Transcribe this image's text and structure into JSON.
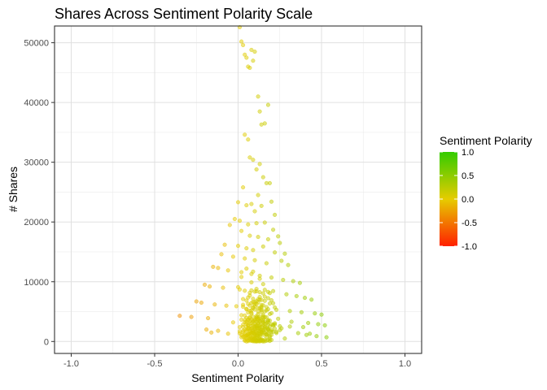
{
  "chart_data": {
    "type": "scatter",
    "title": "Shares Across Sentiment Polarity Scale",
    "xlabel": "Sentiment Polarity",
    "ylabel": "# Shares",
    "xlim": [
      -1.1,
      1.1
    ],
    "ylim": [
      -2000,
      52800
    ],
    "x_ticks": [
      -1.0,
      -0.5,
      0.0,
      0.5,
      1.0
    ],
    "x_tick_labels": [
      "-1.0",
      "-0.5",
      "0.0",
      "0.5",
      "1.0"
    ],
    "y_ticks": [
      0,
      10000,
      20000,
      30000,
      40000,
      50000
    ],
    "y_tick_labels": [
      "0",
      "10000",
      "20000",
      "30000",
      "40000",
      "50000"
    ],
    "grid": true,
    "point_opacity": 0.5,
    "legend": {
      "title": "Sentiment Polarity",
      "placement": "right",
      "ticks": [
        1.0,
        0.5,
        0.0,
        -0.5,
        -1.0
      ],
      "labels": [
        "1.0",
        "0.5",
        "0.0",
        "-0.5",
        "-1.0"
      ],
      "colors": {
        "low": "#ff2000",
        "mid": "#e6cc00",
        "high": "#33cc00"
      }
    },
    "x": [
      0.01,
      0.02,
      0.03,
      0.04,
      0.05,
      0.06,
      0.07,
      0.08,
      0.09,
      0.1,
      0.12,
      0.13,
      0.14,
      0.16,
      0.18,
      0.04,
      0.06,
      0.07,
      0.09,
      0.11,
      0.13,
      0.15,
      0.17,
      0.03,
      0.08,
      0.12,
      0.19,
      0.0,
      0.05,
      0.1,
      0.14,
      0.2,
      0.22,
      -0.02,
      0.01,
      0.06,
      0.11,
      0.16,
      0.21,
      0.24,
      -0.05,
      0.02,
      0.07,
      0.12,
      0.18,
      0.25,
      -0.08,
      0.0,
      0.05,
      0.09,
      0.15,
      0.22,
      0.28,
      -0.1,
      -0.03,
      0.04,
      0.1,
      0.17,
      0.26,
      0.3,
      -0.15,
      -0.12,
      -0.06,
      0.02,
      0.08,
      0.13,
      0.2,
      0.27,
      0.33,
      0.37,
      -0.2,
      -0.17,
      -0.09,
      0.01,
      0.11,
      0.19,
      0.29,
      0.35,
      0.4,
      0.44,
      -0.25,
      -0.22,
      -0.14,
      -0.07,
      0.03,
      0.14,
      0.23,
      0.31,
      0.38,
      0.46,
      0.5,
      -0.35,
      -0.28,
      -0.18,
      0.06,
      0.18,
      0.32,
      0.42,
      0.48,
      0.52,
      0.05,
      0.09,
      0.02,
      0.13,
      0.08,
      0.15,
      0.0,
      0.11,
      0.04,
      0.18,
      0.07,
      0.16,
      0.03,
      0.2,
      0.1,
      0.06,
      0.14,
      -0.01,
      0.22,
      0.09,
      0.05,
      0.17,
      0.12,
      0.08,
      0.19,
      0.02,
      0.15,
      0.11,
      0.24,
      0.04,
      0.13,
      -0.03,
      0.07,
      0.21,
      0.1,
      0.16,
      0.01,
      0.12,
      0.26,
      0.06,
      0.18,
      0.14,
      0.03,
      0.09,
      0.23,
      0.08,
      0.15,
      -0.06,
      0.11,
      0.2,
      0.05,
      0.13,
      0.17,
      0.02,
      0.1,
      0.28,
      0.07,
      0.19,
      0.12,
      0.04,
      0.14,
      0.09,
      0.16,
      0.22,
      0.06,
      0.11,
      0.25,
      0.03,
      0.13,
      0.08,
      0.18,
      0.1,
      0.05,
      0.15,
      0.12,
      0.2,
      0.07,
      0.09,
      0.14,
      0.04,
      0.17,
      0.11,
      0.06,
      0.13,
      0.19,
      0.08,
      0.1,
      0.15,
      0.05,
      0.12,
      0.22,
      0.09,
      0.16,
      0.07,
      0.13,
      0.11,
      0.02,
      0.18,
      0.1,
      0.14,
      0.06,
      0.2,
      0.08,
      0.12,
      0.15,
      0.04,
      0.11,
      0.17,
      0.09,
      0.13,
      0.05,
      0.1,
      0.14,
      0.07,
      0.16,
      0.12,
      0.08,
      0.19,
      0.11,
      0.03,
      0.15,
      0.1,
      0.13,
      0.06,
      0.18,
      0.09,
      0.12,
      0.14,
      0.05,
      0.11,
      0.16,
      0.08,
      0.21,
      0.1,
      0.13,
      0.07,
      0.15,
      -0.12,
      -0.16,
      0.36,
      0.41,
      0.47,
      0.53,
      0.43,
      0.39,
      -0.19,
      0.01,
      0.25,
      0.31,
      0.14,
      0.08,
      0.17,
      0.05,
      0.12,
      0.1,
      0.07,
      0.03,
      0.09,
      0.04,
      0.06,
      0.12,
      0.08,
      0.11,
      0.05,
      0.09,
      0.14,
      0.07,
      0.1,
      0.13,
      0.06,
      0.15,
      0.02,
      0.19,
      0.04,
      0.16,
      0.11,
      0.08,
      0.18,
      0.12,
      0.06,
      0.1,
      0.21,
      0.14,
      0.03,
      0.17,
      0.09,
      0.13,
      0.23,
      0.01,
      0.15,
      0.07,
      0.11,
      0.19,
      0.05,
      0.13,
      0.1,
      0.16,
      0.08,
      0.12,
      0.18,
      0.04,
      0.14,
      0.2,
      0.09,
      0.11,
      0.06,
      0.17,
      0.13,
      0.1,
      0.22,
      0.07,
      0.15,
      0.12,
      0.08,
      0.19,
      0.05,
      0.14,
      0.1,
      0.16,
      0.03,
      0.18,
      0.09,
      0.13,
      0.06,
      0.21,
      0.11,
      0.15,
      0.08,
      0.17,
      0.12,
      0.05,
      0.1,
      0.14,
      0.2,
      0.07,
      0.13,
      0.09,
      0.16,
      0.11,
      0.04,
      0.18,
      0.12,
      0.08,
      0.15,
      0.1,
      0.06,
      0.14,
      0.19,
      0.09,
      0.13,
      0.07,
      0.17,
      0.11,
      0.15,
      0.05,
      0.12,
      0.1,
      0.16,
      0.08,
      0.13,
      0.2,
      0.06,
      0.14,
      0.11,
      0.18,
      0.09,
      0.12,
      0.07,
      0.15,
      0.1,
      0.04,
      0.17,
      0.13,
      0.08,
      0.11,
      0.19,
      0.14,
      0.06,
      0.12,
      0.09,
      0.16,
      0.1,
      0.13,
      0.05,
      0.15,
      0.11,
      0.08,
      0.18,
      0.12,
      0.14,
      0.07,
      0.1,
      0.21,
      0.09,
      0.16,
      0.13
    ],
    "y": [
      52600,
      50200,
      49600,
      48000,
      47500,
      46000,
      45800,
      48800,
      47000,
      48500,
      41000,
      38500,
      36300,
      36500,
      39600,
      34600,
      33800,
      30800,
      30400,
      28800,
      29700,
      27500,
      26500,
      25800,
      23000,
      24500,
      26500,
      23300,
      22800,
      21800,
      22700,
      23400,
      21200,
      20500,
      20200,
      19600,
      19800,
      19900,
      18700,
      17600,
      19500,
      18500,
      17700,
      17500,
      17100,
      16500,
      16200,
      16000,
      15600,
      15300,
      15900,
      14900,
      14700,
      14600,
      14200,
      13900,
      13600,
      13100,
      13500,
      12800,
      12500,
      12300,
      11900,
      11600,
      11300,
      11000,
      10700,
      10300,
      10100,
      9800,
      9500,
      9200,
      9000,
      8700,
      8400,
      8100,
      7900,
      7600,
      7300,
      7000,
      6700,
      6500,
      6200,
      6000,
      5800,
      5500,
      5300,
      5100,
      4900,
      4700,
      4500,
      4300,
      4100,
      3900,
      3700,
      3500,
      3300,
      3100,
      2900,
      2700,
      12200,
      11700,
      10800,
      10500,
      9900,
      9600,
      9100,
      8800,
      8500,
      8300,
      7700,
      7500,
      7100,
      6900,
      6600,
      6300,
      6100,
      5900,
      5700,
      5600,
      5400,
      5200,
      5000,
      4800,
      4600,
      4400,
      4200,
      4000,
      3800,
      3600,
      3400,
      3200,
      3000,
      2800,
      2600,
      2500,
      2400,
      2300,
      2200,
      2100,
      2000,
      1900,
      1800,
      1700,
      1600,
      1500,
      1400,
      1300,
      1200,
      1100,
      1000,
      900,
      800,
      700,
      600,
      500,
      450,
      400,
      350,
      300,
      250,
      200,
      2950,
      2850,
      2750,
      2650,
      2550,
      2450,
      2350,
      2250,
      2150,
      2050,
      1950,
      1850,
      1750,
      1650,
      1550,
      1450,
      1350,
      1250,
      1150,
      1050,
      950,
      850,
      750,
      650,
      550,
      3350,
      3250,
      3150,
      3050,
      4150,
      4050,
      3950,
      3850,
      3750,
      3650,
      3550,
      3450,
      4950,
      4850,
      4750,
      4650,
      4550,
      4450,
      4350,
      4250,
      5750,
      5650,
      5550,
      5450,
      5350,
      5250,
      5150,
      5050,
      6550,
      6450,
      6350,
      6250,
      6150,
      6050,
      5950,
      7450,
      7350,
      7250,
      7150,
      7050,
      6950,
      6850,
      6750,
      8650,
      8550,
      8450,
      8350,
      8250,
      8150,
      8050,
      1800,
      1500,
      1400,
      1100,
      900,
      700,
      1300,
      2400,
      2000,
      1700,
      1900,
      2500,
      1600,
      1250,
      1150,
      1050,
      980,
      920,
      880,
      820,
      780,
      720,
      680,
      620,
      580,
      520,
      480,
      420,
      380,
      1320,
      1280,
      1220,
      1180,
      1120,
      1080,
      1020,
      960,
      1480,
      1420,
      1380,
      1340,
      1260,
      1210,
      1160,
      1620,
      1580,
      1540,
      1520,
      1460,
      1440,
      1410,
      1370,
      1860,
      1820,
      1790,
      1760,
      1720,
      1690,
      1660,
      2120,
      2080,
      2040,
      2010,
      1980,
      1940,
      1910,
      1880,
      2320,
      2280,
      2240,
      2210,
      2180,
      2150,
      2130,
      2620,
      2580,
      2540,
      2510,
      2480,
      2440,
      2410,
      2380,
      2820,
      2780,
      2740,
      2710,
      2680,
      2640,
      2610,
      3120,
      3080,
      3040,
      3010,
      2980,
      2940,
      2910,
      2880,
      3420,
      3380,
      3340,
      3310,
      3280,
      3240,
      3210,
      3720,
      3680,
      3640,
      3610,
      3580,
      3540,
      3510,
      3480,
      4120,
      4080,
      4040,
      4010,
      3980,
      3940,
      3910,
      340,
      310,
      290,
      270,
      260,
      240,
      230,
      220,
      210,
      190,
      180,
      170,
      160,
      150,
      140,
      130,
      120,
      110,
      100,
      90,
      80,
      70,
      60,
      50,
      40,
      30,
      20,
      15,
      10,
      5,
      5200,
      5400,
      5600,
      5800,
      6000,
      6200,
      6400,
      6600,
      6800,
      7000
    ]
  }
}
